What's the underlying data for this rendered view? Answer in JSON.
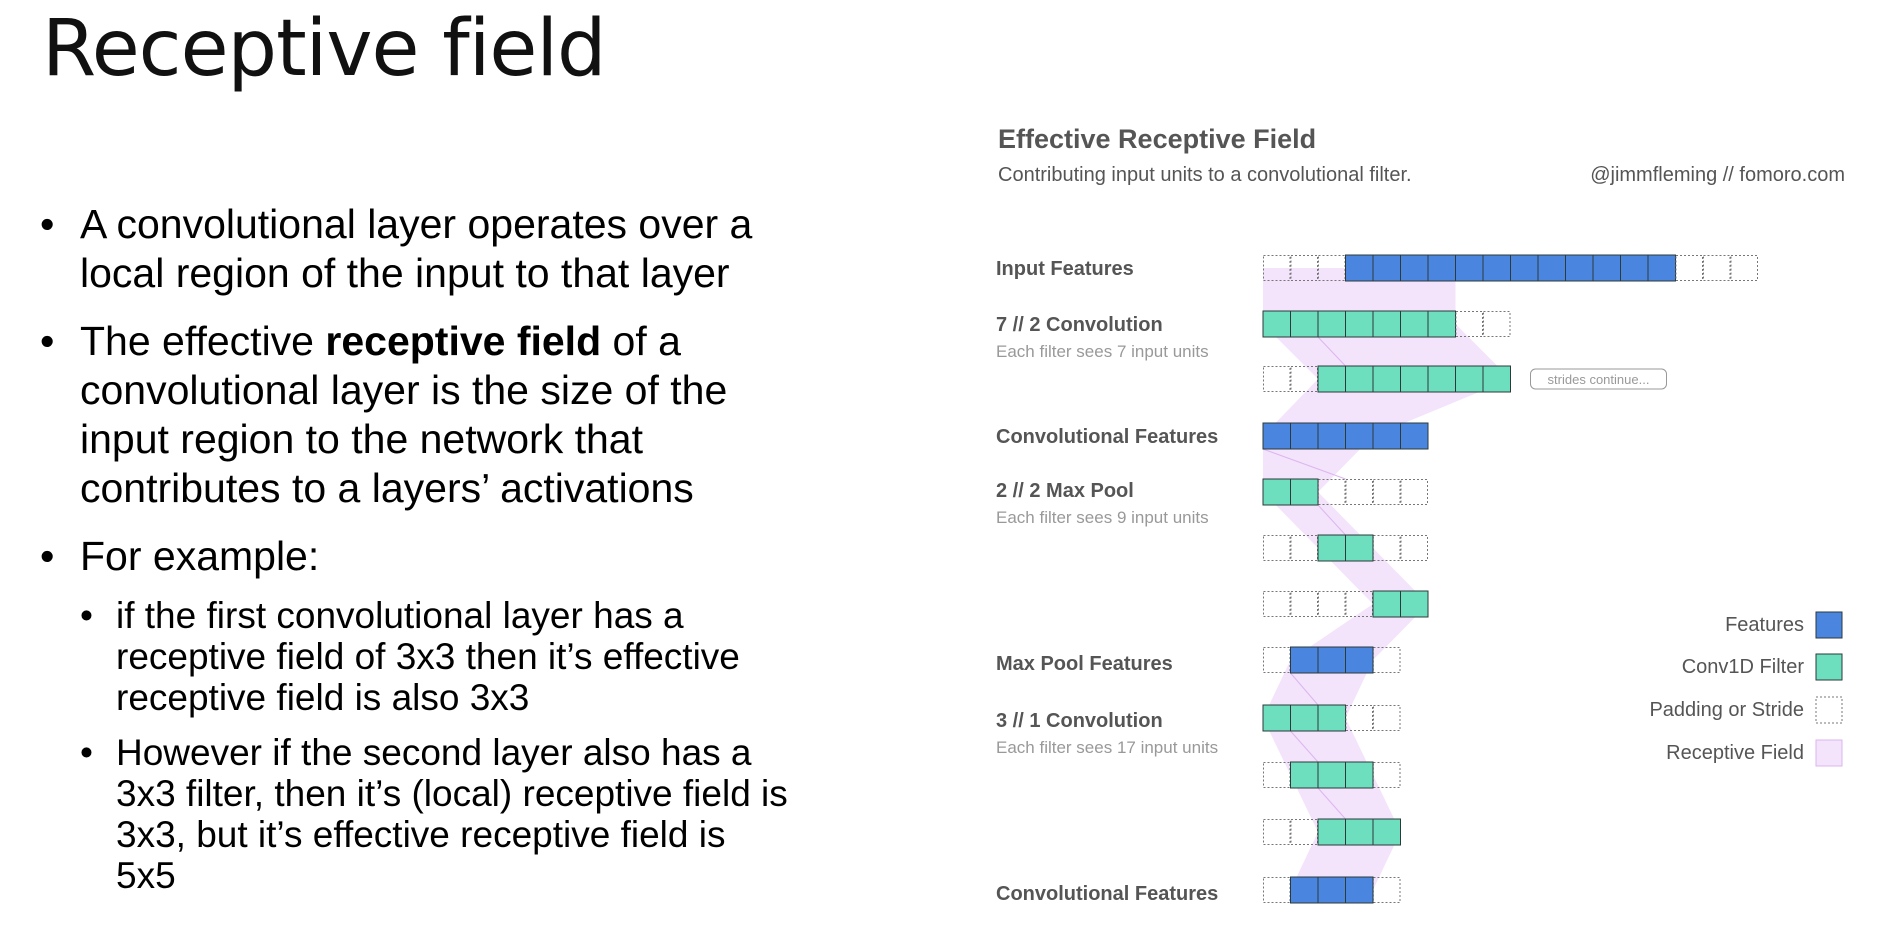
{
  "slide": {
    "title": "Receptive field",
    "bullets": [
      {
        "lines": [
          "A convolutional layer operates over a",
          "local region of the input to that layer"
        ]
      },
      {
        "pre": "The effective ",
        "bold": "receptive field",
        "post": " of a",
        "lines_rest": [
          "convolutional layer is the size of the",
          "input region to the network that",
          "contributes to a layers’ activations"
        ]
      },
      {
        "lines": [
          "For example:"
        ]
      }
    ],
    "subbullets": [
      {
        "lines": [
          "if the first convolutional layer has a",
          "receptive field of 3x3 then it’s effective",
          "receptive field is also 3x3"
        ]
      },
      {
        "lines": [
          "However if the second layer also has a",
          "3x3 filter, then it’s (local) receptive field is",
          "3x3, but it’s effective receptive field is",
          "5x5"
        ]
      }
    ]
  },
  "figure": {
    "title": "Effective Receptive Field",
    "subtitle": "Contributing input units to a convolutional filter.",
    "credit": "@jimmfleming // fomoro.com",
    "strides_note": "strides continue...",
    "colors": {
      "feature": "#4a86e0",
      "filter": "#6ddfbe",
      "receptive": "#f3e3fb",
      "receptive_edge": "#dcb6ef",
      "label": "#555555",
      "sublabel": "#999999"
    },
    "rows": [
      {
        "label": "Input Features",
        "cells": "...FFFFFFFFFFFF...",
        "start": 0
      },
      {
        "label": "7 // 2 Convolution",
        "sublabel": "Each filter sees 7 input units",
        "cells": "CCCCCCC..",
        "start": 0
      },
      {
        "cells": "..CCCCCCC",
        "start": 0,
        "note": true
      },
      {
        "label": "Convolutional Features",
        "cells": "FFFFFF",
        "start": 0
      },
      {
        "label": "2 // 2 Max Pool",
        "sublabel": "Each filter sees 9 input units",
        "cells": "CC....",
        "start": 0
      },
      {
        "cells": "..CC..",
        "start": 0
      },
      {
        "cells": "....CC",
        "start": 0
      },
      {
        "label": "Max Pool Features",
        "cells": ".FFF.",
        "start": 0
      },
      {
        "label": "3 // 1 Convolution",
        "sublabel": "Each filter sees 17 input units",
        "cells": "CCC..",
        "start": 0
      },
      {
        "cells": ".CCC.",
        "start": 0
      },
      {
        "cells": "..CCC",
        "start": 0
      },
      {
        "label": "Convolutional Features",
        "cells": ".FFF.",
        "start": 0
      }
    ],
    "legend": [
      {
        "label": "Features",
        "type": "feature"
      },
      {
        "label": "Conv1D Filter",
        "type": "filter"
      },
      {
        "label": "Padding or Stride",
        "type": "padding"
      },
      {
        "label": "Receptive Field",
        "type": "receptive"
      }
    ]
  }
}
